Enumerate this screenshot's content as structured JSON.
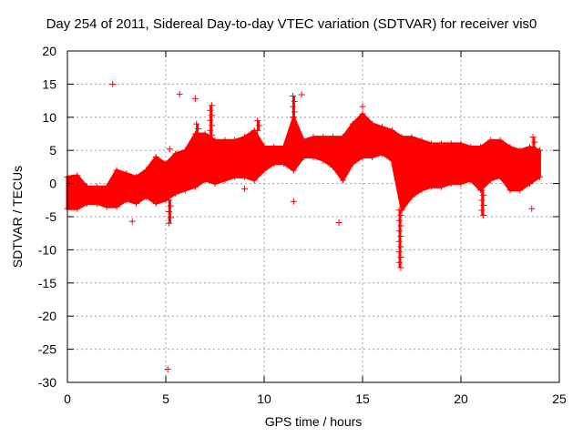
{
  "chart_data": {
    "type": "scatter",
    "title": "Day 254 of 2011, Sidereal Day-to-day VTEC variation (SDTVAR) for receiver vis0",
    "xlabel": "GPS time / hours",
    "ylabel": "SDTVAR / TECUs",
    "xlim": [
      0,
      25
    ],
    "ylim": [
      -30,
      20
    ],
    "xticks": [
      0,
      5,
      10,
      15,
      20,
      25
    ],
    "yticks": [
      -30,
      -25,
      -20,
      -15,
      -10,
      -5,
      0,
      5,
      10,
      15,
      20
    ],
    "grid": true,
    "marker": "+",
    "color": "#ff0000",
    "series": [
      {
        "name": "SDTVAR",
        "band": [
          {
            "x": 0.0,
            "lo": -3.8,
            "hi": 1.0
          },
          {
            "x": 0.5,
            "lo": -3.8,
            "hi": 1.2
          },
          {
            "x": 1.0,
            "lo": -3.0,
            "hi": -0.5
          },
          {
            "x": 1.5,
            "lo": -3.0,
            "hi": -0.5
          },
          {
            "x": 2.0,
            "lo": -3.5,
            "hi": -0.5
          },
          {
            "x": 2.5,
            "lo": -3.5,
            "hi": 2.0
          },
          {
            "x": 3.0,
            "lo": -2.5,
            "hi": 1.5
          },
          {
            "x": 3.5,
            "lo": -3.0,
            "hi": 1.0
          },
          {
            "x": 4.0,
            "lo": -2.0,
            "hi": 2.0
          },
          {
            "x": 4.5,
            "lo": -3.0,
            "hi": 4.0
          },
          {
            "x": 5.0,
            "lo": -2.5,
            "hi": 3.0
          },
          {
            "x": 5.5,
            "lo": -1.5,
            "hi": 4.5
          },
          {
            "x": 6.0,
            "lo": -1.0,
            "hi": 5.0
          },
          {
            "x": 6.5,
            "lo": -0.5,
            "hi": 7.5
          },
          {
            "x": 7.0,
            "lo": 0.5,
            "hi": 7.5
          },
          {
            "x": 7.5,
            "lo": 0.0,
            "hi": 6.5
          },
          {
            "x": 8.0,
            "lo": 0.5,
            "hi": 6.5
          },
          {
            "x": 8.5,
            "lo": 1.0,
            "hi": 6.5
          },
          {
            "x": 9.0,
            "lo": 1.0,
            "hi": 7.0
          },
          {
            "x": 9.5,
            "lo": 0.5,
            "hi": 8.0
          },
          {
            "x": 10.0,
            "lo": 2.0,
            "hi": 5.5
          },
          {
            "x": 10.5,
            "lo": 3.0,
            "hi": 5.5
          },
          {
            "x": 11.0,
            "lo": 3.0,
            "hi": 5.5
          },
          {
            "x": 11.5,
            "lo": 2.0,
            "hi": 10.0
          },
          {
            "x": 12.0,
            "lo": 4.0,
            "hi": 6.5
          },
          {
            "x": 12.5,
            "lo": 4.0,
            "hi": 7.0
          },
          {
            "x": 13.0,
            "lo": 3.5,
            "hi": 7.0
          },
          {
            "x": 13.5,
            "lo": 2.5,
            "hi": 7.0
          },
          {
            "x": 14.0,
            "lo": 0.5,
            "hi": 7.0
          },
          {
            "x": 14.5,
            "lo": 3.0,
            "hi": 9.0
          },
          {
            "x": 15.0,
            "lo": 4.0,
            "hi": 10.5
          },
          {
            "x": 15.5,
            "lo": 4.0,
            "hi": 9.0
          },
          {
            "x": 16.0,
            "lo": 4.5,
            "hi": 8.5
          },
          {
            "x": 16.5,
            "lo": 3.5,
            "hi": 8.0
          },
          {
            "x": 17.0,
            "lo": -4.0,
            "hi": 7.0
          },
          {
            "x": 17.5,
            "lo": -2.0,
            "hi": 7.0
          },
          {
            "x": 18.0,
            "lo": -1.0,
            "hi": 6.5
          },
          {
            "x": 18.5,
            "lo": -0.5,
            "hi": 6.0
          },
          {
            "x": 19.0,
            "lo": -0.5,
            "hi": 6.0
          },
          {
            "x": 19.5,
            "lo": 0.0,
            "hi": 6.0
          },
          {
            "x": 20.0,
            "lo": 0.0,
            "hi": 6.0
          },
          {
            "x": 20.5,
            "lo": 0.5,
            "hi": 5.5
          },
          {
            "x": 21.0,
            "lo": -1.0,
            "hi": 5.5
          },
          {
            "x": 21.5,
            "lo": 0.5,
            "hi": 6.5
          },
          {
            "x": 22.0,
            "lo": 1.0,
            "hi": 6.5
          },
          {
            "x": 22.5,
            "lo": -1.0,
            "hi": 5.5
          },
          {
            "x": 23.0,
            "lo": -1.0,
            "hi": 5.0
          },
          {
            "x": 23.5,
            "lo": 0.0,
            "hi": 5.5
          },
          {
            "x": 24.0,
            "lo": 1.0,
            "hi": 5.0
          }
        ],
        "spikes": [
          {
            "x": 16.9,
            "y": -12.7
          },
          {
            "x": 11.5,
            "y": 13.2
          },
          {
            "x": 6.6,
            "y": 9.0
          },
          {
            "x": 7.3,
            "y": 11.8
          },
          {
            "x": 9.7,
            "y": 9.5
          },
          {
            "x": 5.2,
            "y": -6.0
          },
          {
            "x": 21.1,
            "y": -4.8
          },
          {
            "x": 23.7,
            "y": 7.0
          }
        ],
        "outliers": [
          {
            "x": 2.3,
            "y": 15.0
          },
          {
            "x": 5.1,
            "y": -28.0
          },
          {
            "x": 5.7,
            "y": 13.5
          },
          {
            "x": 6.5,
            "y": 12.8
          },
          {
            "x": 11.9,
            "y": 13.4
          },
          {
            "x": 15.0,
            "y": 11.6
          },
          {
            "x": 11.5,
            "y": -2.7
          },
          {
            "x": 13.8,
            "y": -5.9
          },
          {
            "x": 3.3,
            "y": -5.7
          },
          {
            "x": 23.6,
            "y": -3.8
          },
          {
            "x": 5.2,
            "y": 5.2
          },
          {
            "x": 9.0,
            "y": -0.8
          }
        ]
      }
    ]
  }
}
